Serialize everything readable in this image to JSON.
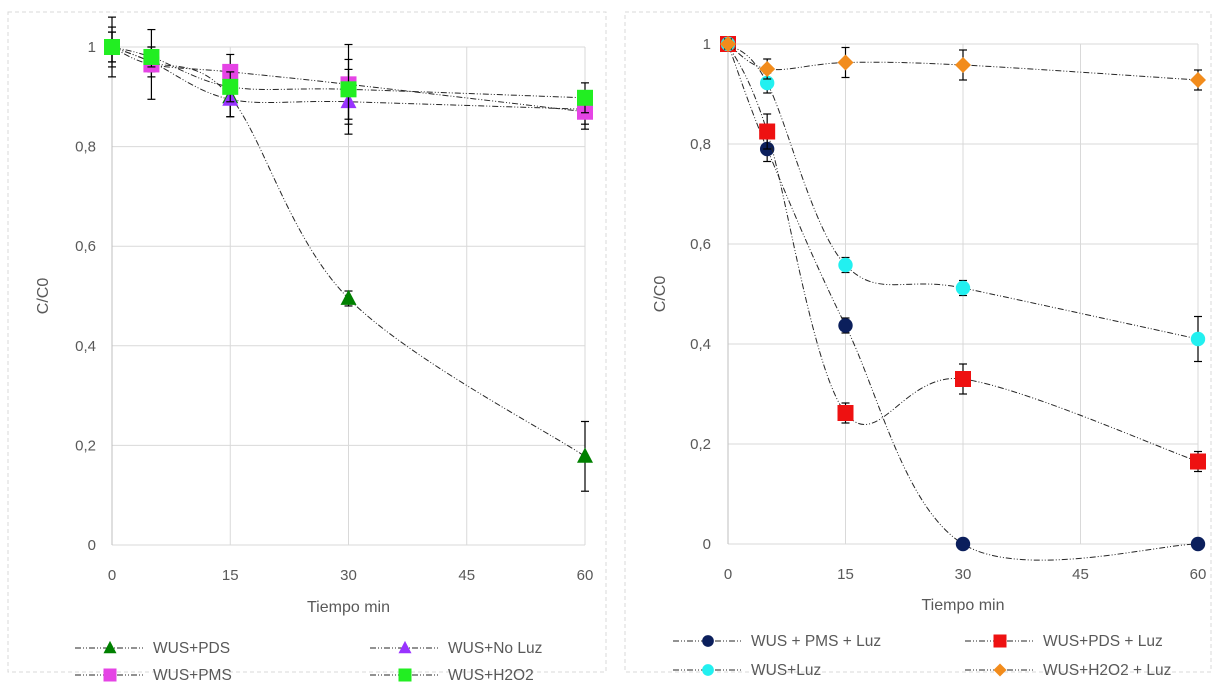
{
  "chart_data": [
    {
      "type": "line",
      "title": "",
      "xlabel": "Tiempo min",
      "ylabel": "C/C0",
      "xlim": [
        0,
        60
      ],
      "ylim": [
        0,
        1
      ],
      "x_ticks": [
        "0",
        "15",
        "30",
        "45",
        "60"
      ],
      "y_ticks": [
        "0",
        "0,2",
        "0,4",
        "0,6",
        "0,8",
        "1"
      ],
      "grid": true,
      "legend_position": "bottom",
      "series": [
        {
          "name": "WUS+PDS",
          "marker": "triangle",
          "color": "#008000",
          "x": [
            0,
            5,
            15,
            30,
            60
          ],
          "y": [
            1.0,
            0.97,
            0.9,
            0.495,
            0.178
          ],
          "err": [
            0.06,
            0.03,
            0.04,
            0.015,
            0.07
          ]
        },
        {
          "name": "WUS+No Luz",
          "marker": "triangle",
          "color": "#9933FF",
          "x": [
            0,
            5,
            15,
            30,
            60
          ],
          "y": [
            1.0,
            0.97,
            0.895,
            0.89,
            0.875
          ],
          "err": [
            0.04,
            0.02,
            0.035,
            0.065,
            0.03
          ]
        },
        {
          "name": "WUS+PMS",
          "marker": "square",
          "color": "#E544E5",
          "x": [
            0,
            5,
            15,
            30,
            60
          ],
          "y": [
            1.0,
            0.965,
            0.95,
            0.925,
            0.87
          ],
          "err": [
            0.03,
            0.07,
            0.035,
            0.08,
            0.035
          ]
        },
        {
          "name": "WUS+H2O2",
          "marker": "square",
          "color": "#22EE22",
          "x": [
            0,
            5,
            15,
            30,
            60
          ],
          "y": [
            1.0,
            0.98,
            0.92,
            0.915,
            0.898
          ],
          "err": [
            0.03,
            0.02,
            0.03,
            0.06,
            0.03
          ]
        }
      ],
      "legend": [
        "WUS+PDS",
        "WUS+No Luz",
        "WUS+PMS",
        "WUS+H2O2"
      ]
    },
    {
      "type": "line",
      "title": "",
      "xlabel": "Tiempo min",
      "ylabel": "C/C0",
      "xlim": [
        0,
        60
      ],
      "ylim": [
        0,
        1
      ],
      "x_ticks": [
        "0",
        "15",
        "30",
        "45",
        "60"
      ],
      "y_ticks": [
        "0",
        "0,2",
        "0,4",
        "0,6",
        "0,8",
        "1"
      ],
      "grid": true,
      "legend_position": "bottom",
      "series": [
        {
          "name": "WUS + PMS + Luz",
          "marker": "circle",
          "color": "#0B1F5C",
          "x": [
            0,
            5,
            15,
            30,
            60
          ],
          "y": [
            1.0,
            0.79,
            0.437,
            0.0,
            0.0
          ],
          "err": [
            0.01,
            0.025,
            0.015,
            0.0,
            0.0
          ]
        },
        {
          "name": "WUS+PDS + Luz",
          "marker": "square",
          "color": "#EE1111",
          "x": [
            0,
            5,
            15,
            30,
            60
          ],
          "y": [
            1.0,
            0.825,
            0.262,
            0.33,
            0.165
          ],
          "err": [
            0.01,
            0.035,
            0.02,
            0.03,
            0.02
          ]
        },
        {
          "name": "WUS+Luz",
          "marker": "circle",
          "color": "#22F0F0",
          "x": [
            0,
            5,
            15,
            30,
            60
          ],
          "y": [
            1.0,
            0.922,
            0.558,
            0.512,
            0.41
          ],
          "err": [
            0.01,
            0.02,
            0.015,
            0.015,
            0.045
          ]
        },
        {
          "name": "WUS+H2O2 + Luz",
          "marker": "diamond",
          "color": "#F28C1C",
          "x": [
            0,
            5,
            15,
            30,
            60
          ],
          "y": [
            1.0,
            0.95,
            0.963,
            0.958,
            0.928
          ],
          "err": [
            0.01,
            0.02,
            0.03,
            0.03,
            0.02
          ]
        }
      ],
      "legend": [
        "WUS + PMS + Luz",
        "WUS+PDS + Luz",
        "WUS+Luz",
        "WUS+H2O2 + Luz"
      ]
    }
  ]
}
